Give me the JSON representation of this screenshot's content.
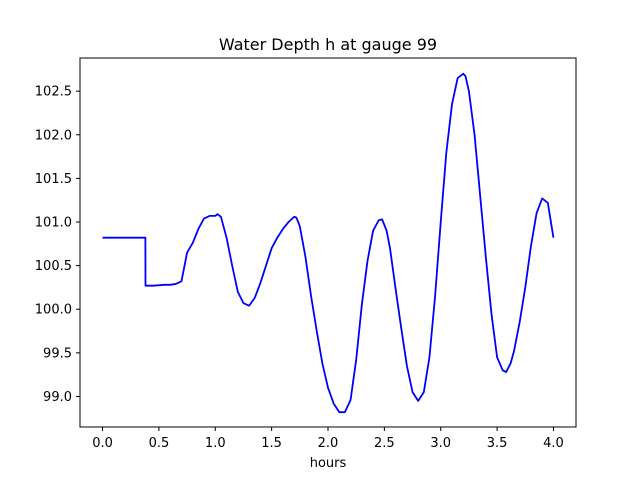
{
  "chart_data": {
    "type": "line",
    "title": "Water Depth h at gauge 99",
    "xlabel": "hours",
    "ylabel": "",
    "xlim": [
      -0.2,
      4.2
    ],
    "ylim": [
      98.65,
      102.88
    ],
    "grid": false,
    "legend": "none",
    "xticks": [
      0.0,
      0.5,
      1.0,
      1.5,
      2.0,
      2.5,
      3.0,
      3.5,
      4.0
    ],
    "xtick_labels": [
      "0.0",
      "0.5",
      "1.0",
      "1.5",
      "2.0",
      "2.5",
      "3.0",
      "3.5",
      "4.0"
    ],
    "yticks": [
      99.0,
      99.5,
      100.0,
      100.5,
      101.0,
      101.5,
      102.0,
      102.5
    ],
    "ytick_labels": [
      "99.0",
      "99.5",
      "100.0",
      "100.5",
      "101.0",
      "101.5",
      "102.0",
      "102.5"
    ],
    "series": [
      {
        "color": "#0000ff",
        "x": [
          0.0,
          0.1,
          0.2,
          0.3,
          0.38,
          0.381,
          0.45,
          0.55,
          0.6,
          0.65,
          0.7,
          0.72,
          0.75,
          0.8,
          0.85,
          0.9,
          0.95,
          1.0,
          1.02,
          1.05,
          1.1,
          1.15,
          1.2,
          1.25,
          1.3,
          1.35,
          1.4,
          1.45,
          1.5,
          1.55,
          1.6,
          1.65,
          1.7,
          1.72,
          1.75,
          1.8,
          1.85,
          1.9,
          1.95,
          2.0,
          2.05,
          2.1,
          2.15,
          2.2,
          2.25,
          2.3,
          2.35,
          2.4,
          2.45,
          2.48,
          2.52,
          2.55,
          2.6,
          2.65,
          2.7,
          2.75,
          2.8,
          2.85,
          2.9,
          2.95,
          3.0,
          3.05,
          3.1,
          3.15,
          3.2,
          3.22,
          3.25,
          3.3,
          3.35,
          3.4,
          3.45,
          3.5,
          3.55,
          3.58,
          3.62,
          3.65,
          3.7,
          3.75,
          3.8,
          3.85,
          3.9,
          3.95,
          4.0
        ],
        "y": [
          100.82,
          100.82,
          100.82,
          100.82,
          100.82,
          100.27,
          100.27,
          100.28,
          100.28,
          100.29,
          100.32,
          100.45,
          100.65,
          100.76,
          100.92,
          101.04,
          101.07,
          101.07,
          101.09,
          101.06,
          100.82,
          100.5,
          100.2,
          100.07,
          100.04,
          100.13,
          100.3,
          100.5,
          100.7,
          100.82,
          100.92,
          101.0,
          101.06,
          101.05,
          100.95,
          100.6,
          100.15,
          99.75,
          99.38,
          99.1,
          98.92,
          98.82,
          98.82,
          98.96,
          99.42,
          100.05,
          100.55,
          100.9,
          101.02,
          101.03,
          100.9,
          100.7,
          100.23,
          99.78,
          99.35,
          99.05,
          98.95,
          99.05,
          99.45,
          100.15,
          101.0,
          101.8,
          102.35,
          102.65,
          102.7,
          102.67,
          102.5,
          102.0,
          101.3,
          100.6,
          99.95,
          99.45,
          99.3,
          99.28,
          99.38,
          99.52,
          99.85,
          100.25,
          100.72,
          101.1,
          101.27,
          101.22,
          100.82
        ]
      }
    ]
  }
}
